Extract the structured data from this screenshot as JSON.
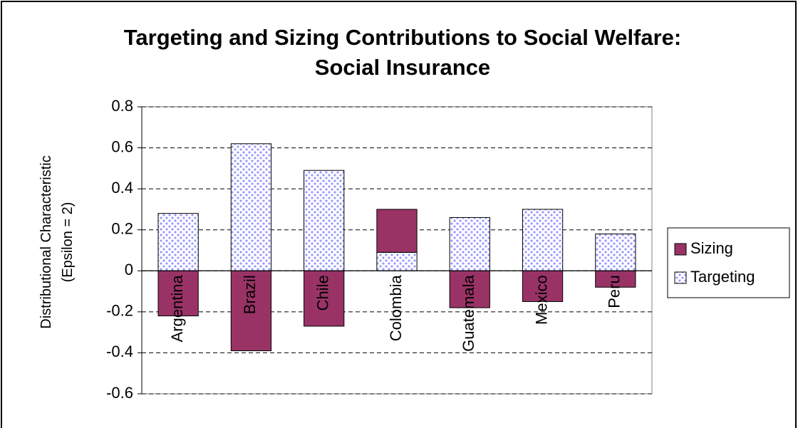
{
  "chart_data": {
    "type": "bar",
    "stacked": true,
    "title": "Targeting and Sizing Contributions to Social Welfare: Social Insurance",
    "ylabel": [
      "Distributional Characteristic",
      "(Epsilon = 2)"
    ],
    "categories": [
      "Argentina",
      "Brazil",
      "Chile",
      "Colombia",
      "Guatemala",
      "Mexico",
      "Peru"
    ],
    "series": [
      {
        "name": "Sizing",
        "color": "#993366",
        "values": [
          -0.22,
          -0.39,
          -0.27,
          0.21,
          -0.18,
          -0.15,
          -0.08
        ]
      },
      {
        "name": "Targeting",
        "color": "#9999ff",
        "pattern": "dots",
        "values": [
          0.28,
          0.62,
          0.49,
          0.09,
          0.26,
          0.3,
          0.18
        ]
      }
    ],
    "ylim": [
      -0.6,
      0.8
    ],
    "yticks": [
      -0.6,
      -0.4,
      -0.2,
      0,
      0.2,
      0.4,
      0.6,
      0.8
    ],
    "grid": true,
    "legend": "right"
  }
}
